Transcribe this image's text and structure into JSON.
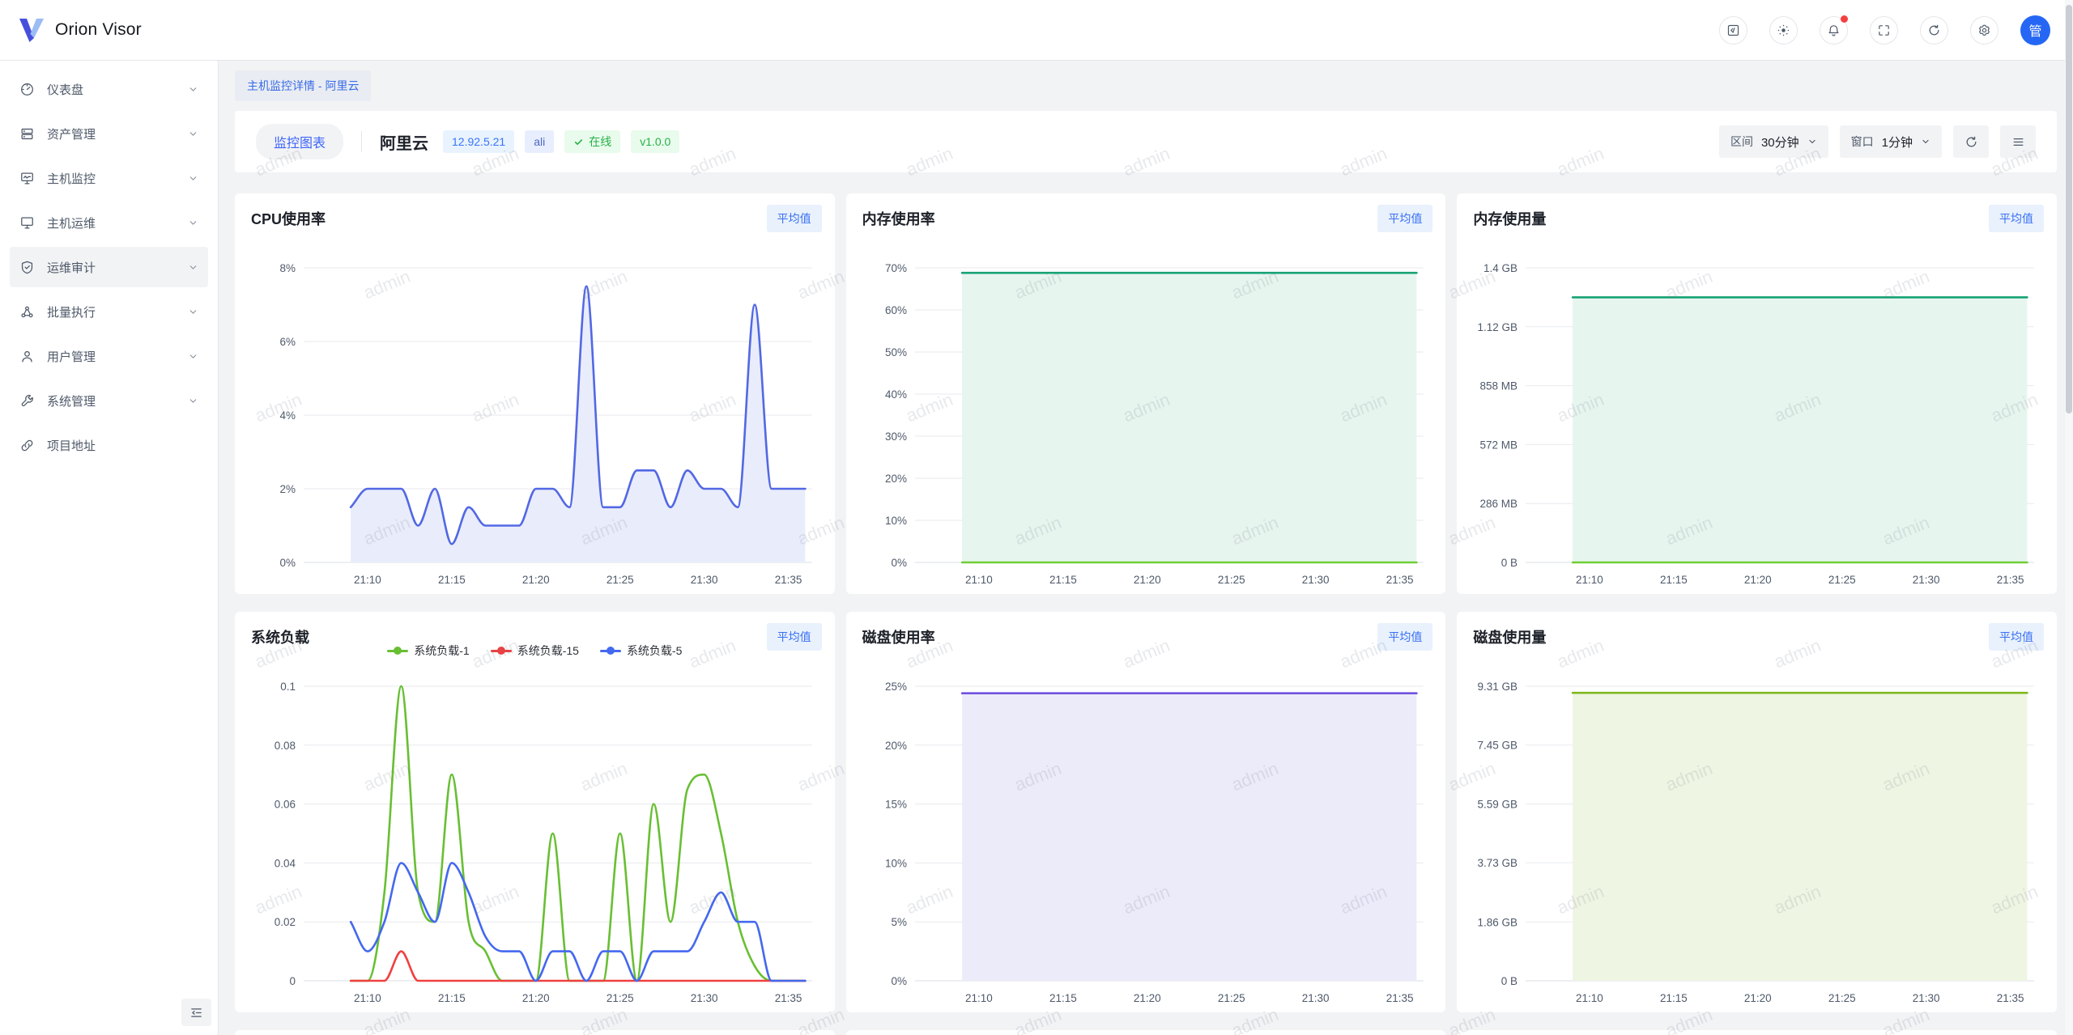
{
  "app": {
    "name": "Orion Visor",
    "watermark_text": "admin"
  },
  "header": {
    "icon_names": [
      "code-square-icon",
      "theme-icon",
      "bell-icon",
      "fullscreen-icon",
      "refresh-icon",
      "gear-icon"
    ],
    "notification_badge": true,
    "avatar_text": "管"
  },
  "sidebar": {
    "items": [
      {
        "label": "仪表盘",
        "icon": "dashboard",
        "expandable": true,
        "active": false
      },
      {
        "label": "资产管理",
        "icon": "assets",
        "expandable": true,
        "active": false
      },
      {
        "label": "主机监控",
        "icon": "host-monitor",
        "expandable": true,
        "active": false
      },
      {
        "label": "主机运维",
        "icon": "host-ops",
        "expandable": true,
        "active": false
      },
      {
        "label": "运维审计",
        "icon": "audit-shield",
        "expandable": true,
        "active": true
      },
      {
        "label": "批量执行",
        "icon": "batch-exec",
        "expandable": true,
        "active": false
      },
      {
        "label": "用户管理",
        "icon": "user",
        "expandable": true,
        "active": false
      },
      {
        "label": "系统管理",
        "icon": "system-wrench",
        "expandable": true,
        "active": false
      },
      {
        "label": "项目地址",
        "icon": "link",
        "expandable": false,
        "active": false
      }
    ]
  },
  "breadcrumb": {
    "label": "主机监控详情 - 阿里云"
  },
  "toolbar": {
    "chart_tab": "监控图表",
    "host_name": "阿里云",
    "host_ip": "12.92.5.21",
    "host_tag": "ali",
    "status": "在线",
    "version": "v1.0.0",
    "range_label": "区间",
    "range_value": "30分钟",
    "window_label": "窗口",
    "window_value": "1分钟"
  },
  "cards": [
    {
      "title": "CPU使用率",
      "badge": "平均值"
    },
    {
      "title": "内存使用率",
      "badge": "平均值"
    },
    {
      "title": "内存使用量",
      "badge": "平均值"
    },
    {
      "title": "系统负载",
      "badge": "平均值"
    },
    {
      "title": "磁盘使用率",
      "badge": "平均值"
    },
    {
      "title": "磁盘使用量",
      "badge": "平均值"
    }
  ],
  "chart_data": [
    {
      "type": "area",
      "title": "CPU使用率",
      "ylabel": "percent",
      "grid": true,
      "legend": null,
      "x_range": [
        6.2,
        36.4
      ],
      "x_ticks": {
        "values": [
          10,
          15,
          20,
          25,
          30,
          35
        ],
        "labels": [
          "21:10",
          "21:15",
          "21:20",
          "21:25",
          "21:30",
          "21:35"
        ]
      },
      "y_max": 8,
      "y_ticks": {
        "values": [
          0,
          2,
          4,
          6,
          8
        ],
        "labels": [
          "0%",
          "2%",
          "4%",
          "6%",
          "8%"
        ]
      },
      "x": [
        9,
        10,
        11,
        12,
        13,
        14,
        15,
        16,
        17,
        18,
        19,
        20,
        21,
        22,
        23,
        24,
        25,
        26,
        27,
        28,
        29,
        30,
        31,
        32,
        33,
        34,
        35,
        36
      ],
      "series": [
        {
          "color": "#5368e4",
          "fill": "#e9edfb",
          "values": [
            1.5,
            2,
            2,
            2,
            1,
            2,
            0.5,
            1.5,
            1,
            1,
            1,
            2,
            2,
            1.5,
            7.5,
            1.5,
            1.5,
            2.5,
            2.5,
            1.5,
            2.5,
            2,
            2,
            1.5,
            7,
            2,
            2,
            2
          ]
        }
      ]
    },
    {
      "type": "area",
      "title": "内存使用率",
      "ylabel": "percent",
      "grid": true,
      "legend": null,
      "x_range": [
        6.2,
        36.4
      ],
      "x_ticks": {
        "values": [
          10,
          15,
          20,
          25,
          30,
          35
        ],
        "labels": [
          "21:10",
          "21:15",
          "21:20",
          "21:25",
          "21:30",
          "21:35"
        ]
      },
      "y_max": 70,
      "y_ticks": {
        "values": [
          0,
          10,
          20,
          30,
          40,
          50,
          60,
          70
        ],
        "labels": [
          "0%",
          "10%",
          "20%",
          "30%",
          "40%",
          "50%",
          "60%",
          "70%"
        ]
      },
      "x": [
        9,
        10,
        11,
        12,
        13,
        14,
        15,
        16,
        17,
        18,
        19,
        20,
        21,
        22,
        23,
        24,
        25,
        26,
        27,
        28,
        29,
        30,
        31,
        32,
        33,
        34,
        35,
        36
      ],
      "series": [
        {
          "color": "#17a274",
          "fill": "#e7f5ef",
          "const": 68.8
        },
        {
          "color": "#6fce35",
          "fill": null,
          "const": 0
        }
      ]
    },
    {
      "type": "area",
      "title": "内存使用量",
      "ylabel": "bytes",
      "grid": true,
      "legend": null,
      "x_range": [
        6.2,
        36.4
      ],
      "x_ticks": {
        "values": [
          10,
          15,
          20,
          25,
          30,
          35
        ],
        "labels": [
          "21:10",
          "21:15",
          "21:20",
          "21:25",
          "21:30",
          "21:35"
        ]
      },
      "y_max": 1.4,
      "y_ticks": {
        "values": [
          0,
          0.28,
          0.56,
          0.84,
          1.12,
          1.4
        ],
        "labels": [
          "0 B",
          "286 MB",
          "572 MB",
          "858 MB",
          "1.12 GB",
          "1.4 GB"
        ]
      },
      "x": [
        9,
        10,
        11,
        12,
        13,
        14,
        15,
        16,
        17,
        18,
        19,
        20,
        21,
        22,
        23,
        24,
        25,
        26,
        27,
        28,
        29,
        30,
        31,
        32,
        33,
        34,
        35,
        36
      ],
      "series": [
        {
          "color": "#17a274",
          "fill": "#e7f5ef",
          "const": 1.26
        },
        {
          "color": "#6fce35",
          "fill": null,
          "const": 0
        }
      ]
    },
    {
      "type": "line",
      "title": "系统负载",
      "ylabel": "load",
      "grid": true,
      "legend": [
        "系统负载-1",
        "系统负载-15",
        "系统负载-5"
      ],
      "legend_colors": [
        "#68bf33",
        "#f04040",
        "#4468ef"
      ],
      "x_range": [
        6.2,
        36.4
      ],
      "x_ticks": {
        "values": [
          10,
          15,
          20,
          25,
          30,
          35
        ],
        "labels": [
          "21:10",
          "21:15",
          "21:20",
          "21:25",
          "21:30",
          "21:35"
        ]
      },
      "y_max": 0.1,
      "y_ticks": {
        "values": [
          0,
          0.02,
          0.04,
          0.06,
          0.08,
          0.1
        ],
        "labels": [
          "0",
          "0.02",
          "0.04",
          "0.06",
          "0.08",
          "0.1"
        ]
      },
      "x": [
        9,
        10,
        11,
        12,
        13,
        14,
        15,
        16,
        17,
        18,
        19,
        20,
        21,
        22,
        23,
        24,
        25,
        26,
        27,
        28,
        29,
        30,
        31,
        32,
        33,
        34,
        35,
        36
      ],
      "series": [
        {
          "name": "系统负载-1",
          "color": "#68bf33",
          "fill": null,
          "values": [
            0,
            0,
            0.03,
            0.1,
            0.03,
            0.02,
            0.07,
            0.02,
            0.01,
            0,
            0,
            0,
            0.05,
            0,
            0,
            0,
            0.05,
            0,
            0.06,
            0.02,
            0.065,
            0.07,
            0.05,
            0.02,
            0.005,
            0,
            0,
            0
          ]
        },
        {
          "name": "系统负载-15",
          "color": "#f04040",
          "fill": null,
          "values": [
            0,
            0,
            0,
            0.01,
            0,
            0,
            0,
            0,
            0,
            0,
            0,
            0,
            0,
            0,
            0,
            0,
            0,
            0,
            0,
            0,
            0,
            0,
            0,
            0,
            0,
            0,
            0,
            0
          ]
        },
        {
          "name": "系统负载-5",
          "color": "#4468ef",
          "fill": null,
          "values": [
            0.02,
            0.01,
            0.02,
            0.04,
            0.03,
            0.02,
            0.04,
            0.03,
            0.015,
            0.01,
            0.01,
            0,
            0.01,
            0.01,
            0,
            0.01,
            0.01,
            0,
            0.01,
            0.01,
            0.01,
            0.02,
            0.03,
            0.02,
            0.02,
            0,
            0,
            0
          ]
        }
      ]
    },
    {
      "type": "area",
      "title": "磁盘使用率",
      "ylabel": "percent",
      "grid": true,
      "legend": null,
      "x_range": [
        6.2,
        36.4
      ],
      "x_ticks": {
        "values": [
          10,
          15,
          20,
          25,
          30,
          35
        ],
        "labels": [
          "21:10",
          "21:15",
          "21:20",
          "21:25",
          "21:30",
          "21:35"
        ]
      },
      "y_max": 25,
      "y_ticks": {
        "values": [
          0,
          5,
          10,
          15,
          20,
          25
        ],
        "labels": [
          "0%",
          "5%",
          "10%",
          "15%",
          "20%",
          "25%"
        ]
      },
      "x": [
        9,
        10,
        11,
        12,
        13,
        14,
        15,
        16,
        17,
        18,
        19,
        20,
        21,
        22,
        23,
        24,
        25,
        26,
        27,
        28,
        29,
        30,
        31,
        32,
        33,
        34,
        35,
        36
      ],
      "series": [
        {
          "color": "#7152e0",
          "fill": "#ecebf9",
          "const": 24.4
        }
      ]
    },
    {
      "type": "area",
      "title": "磁盘使用量",
      "ylabel": "bytes",
      "grid": true,
      "legend": null,
      "x_range": [
        6.2,
        36.4
      ],
      "x_ticks": {
        "values": [
          10,
          15,
          20,
          25,
          30,
          35
        ],
        "labels": [
          "21:10",
          "21:15",
          "21:20",
          "21:25",
          "21:30",
          "21:35"
        ]
      },
      "y_max": 9.31,
      "y_ticks": {
        "values": [
          0,
          1.86,
          3.73,
          5.59,
          7.45,
          9.31
        ],
        "labels": [
          "0 B",
          "1.86 GB",
          "3.73 GB",
          "5.59 GB",
          "7.45 GB",
          "9.31 GB"
        ]
      },
      "x": [
        9,
        10,
        11,
        12,
        13,
        14,
        15,
        16,
        17,
        18,
        19,
        20,
        21,
        22,
        23,
        24,
        25,
        26,
        27,
        28,
        29,
        30,
        31,
        32,
        33,
        34,
        35,
        36
      ],
      "series": [
        {
          "color": "#7eb91e",
          "fill": "#eff5e3",
          "const": 9.1
        }
      ]
    }
  ],
  "colors": {
    "primary": "#3d64fa",
    "success": "#27b148",
    "avatar_bg": "#2567f4"
  }
}
